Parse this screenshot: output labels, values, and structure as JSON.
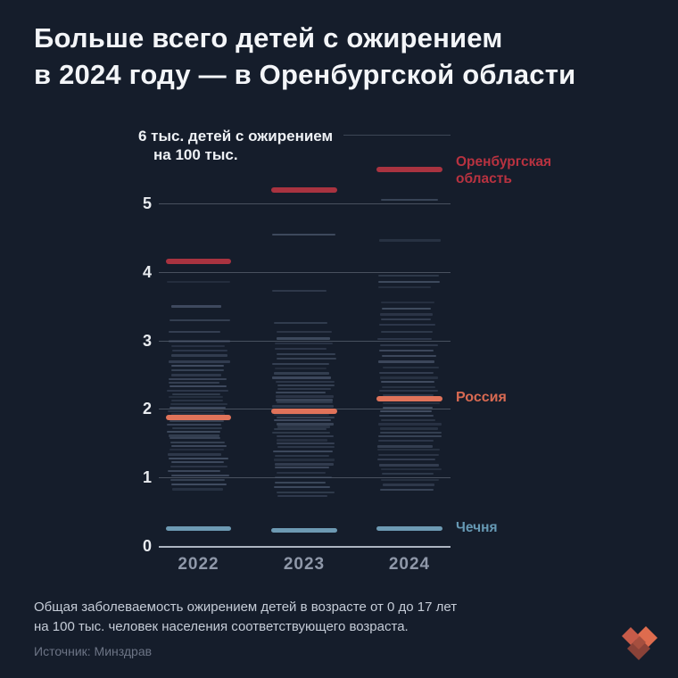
{
  "title": {
    "line1": "Больше всего детей с ожирением",
    "line2": "в 2024 году — в Оренбургской области"
  },
  "chart": {
    "axis_title_line1": "6 тыс. детей с ожирением",
    "axis_title_line2": "на 100 тыс."
  },
  "chart_data": {
    "type": "scatter",
    "marker": "horizontal-dash",
    "title": "Общая заболеваемость ожирением детей на 100 тыс.",
    "x": [
      "2022",
      "2023",
      "2024"
    ],
    "ylim": [
      0,
      6
    ],
    "yticks": [
      0,
      1,
      2,
      3,
      4,
      5,
      6
    ],
    "grid": true,
    "legend_position": "right-of-last-point",
    "series": [
      {
        "name": "Оренбургская область",
        "values": [
          4.15,
          5.2,
          5.5
        ],
        "color": "#a93340"
      },
      {
        "name": "Россия",
        "values": [
          1.88,
          1.97,
          2.15
        ],
        "color": "#e0735a"
      },
      {
        "name": "Чечня",
        "values": [
          0.25,
          0.22,
          0.25
        ],
        "color": "#6d9ab3"
      }
    ],
    "background_regions": {
      "2022": [
        3.85,
        3.5,
        3.3,
        3.12,
        3.0,
        2.92,
        2.85,
        2.78,
        2.7,
        2.63,
        2.57,
        2.5,
        2.44,
        2.38,
        2.33,
        2.27,
        2.22,
        2.17,
        2.12,
        2.07,
        2.02,
        1.97,
        1.93,
        1.82,
        1.77,
        1.72,
        1.67,
        1.62,
        1.57,
        1.51,
        1.46,
        1.4,
        1.34,
        1.28,
        1.22,
        1.16,
        1.1,
        1.03,
        0.96,
        0.9,
        0.83
      ],
      "2023": [
        4.55,
        3.72,
        3.25,
        3.12,
        3.03,
        2.95,
        2.88,
        2.8,
        2.73,
        2.66,
        2.59,
        2.52,
        2.46,
        2.4,
        2.34,
        2.29,
        2.24,
        2.19,
        2.14,
        2.09,
        2.04,
        1.92,
        1.87,
        1.83,
        1.79,
        1.75,
        1.7,
        1.65,
        1.6,
        1.55,
        1.5,
        1.44,
        1.38,
        1.32,
        1.26,
        1.2,
        1.14,
        1.07,
        1.0,
        0.93,
        0.86,
        0.78,
        0.73
      ],
      "2024": [
        5.05,
        4.47,
        3.95,
        3.86,
        3.78,
        3.56,
        3.47,
        3.39,
        3.31,
        3.23,
        3.12,
        3.02,
        2.93,
        2.85,
        2.77,
        2.69,
        2.61,
        2.53,
        2.46,
        2.39,
        2.32,
        2.26,
        2.2,
        2.08,
        2.02,
        1.96,
        1.9,
        1.84,
        1.78,
        1.72,
        1.66,
        1.6,
        1.53,
        1.46,
        1.4,
        1.33,
        1.26,
        1.19,
        1.12,
        1.05,
        0.97,
        0.9,
        0.82
      ]
    }
  },
  "footer": {
    "note_line1": "Общая заболеваемость ожирением детей в возрасте от 0 до 17 лет",
    "note_line2": "на 100 тыс. человек населения соответствующего возраста.",
    "source": "Источник: Минздрав"
  },
  "colors": {
    "background": "#151d2b",
    "title_text": "#f3f5f8",
    "orenburg_line": "#a93340",
    "orenburg_label": "#b83240",
    "russia_line": "#e0735a",
    "russia_label": "#d96a52",
    "chechnya_line": "#6d9ab3",
    "chechnya_label": "#6699b4",
    "region_line": "#5a6880",
    "gridline": "#9ba6b6",
    "year_label": "#8f98a9",
    "logo_orange": "#de6c4e",
    "logo_brick": "#c65b49",
    "logo_dark": "#8a4238"
  }
}
